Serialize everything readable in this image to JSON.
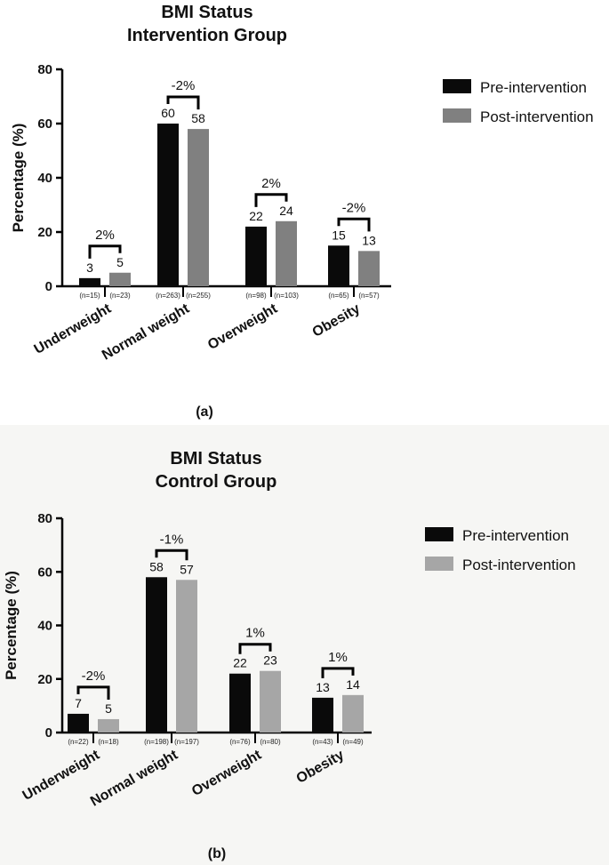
{
  "chart_data": [
    {
      "type": "bar",
      "title_lines": [
        "BMI Status",
        "Intervention Group"
      ],
      "ylabel": "Percentage (%)",
      "ylim": [
        0,
        80
      ],
      "yticks": [
        "0",
        "20",
        "40",
        "60",
        "80"
      ],
      "categories": [
        "Underweight",
        "Normal weight",
        "Overweight",
        "Obesity"
      ],
      "series": [
        {
          "name": "Pre-intervention",
          "color": "#0a0a0a",
          "values": [
            3,
            60,
            22,
            15
          ],
          "n_labels": [
            "(n=15)",
            "(n=263)",
            "(n=98)",
            "(n=65)"
          ]
        },
        {
          "name": "Post-intervention",
          "color": "#808080",
          "values": [
            5,
            58,
            24,
            13
          ],
          "n_labels": [
            "(n=23)",
            "(n=255)",
            "(n=103)",
            "(n=57)"
          ]
        }
      ],
      "diff_labels": [
        "2%",
        "-2%",
        "2%",
        "-2%"
      ],
      "legend_position": "top-right",
      "caption": "(a)"
    },
    {
      "type": "bar",
      "title_lines": [
        "BMI Status",
        "Control Group"
      ],
      "ylabel": "Percentage (%)",
      "ylim": [
        0,
        80
      ],
      "yticks": [
        "0",
        "20",
        "40",
        "60",
        "80"
      ],
      "categories": [
        "Underweight",
        "Normal weight",
        "Overweight",
        "Obesity"
      ],
      "series": [
        {
          "name": "Pre-intervention",
          "color": "#0a0a0a",
          "values": [
            7,
            58,
            22,
            13
          ],
          "n_labels": [
            "(n=22)",
            "(n=198)",
            "(n=76)",
            "(n=43)"
          ]
        },
        {
          "name": "Post-intervention",
          "color": "#a6a6a6",
          "values": [
            5,
            57,
            23,
            14
          ],
          "n_labels": [
            "(n=18)",
            "(n=197)",
            "(n=80)",
            "(n=49)"
          ]
        }
      ],
      "diff_labels": [
        "-2%",
        "-1%",
        "1%",
        "1%"
      ],
      "legend_position": "top-right",
      "caption": "(b)"
    }
  ]
}
